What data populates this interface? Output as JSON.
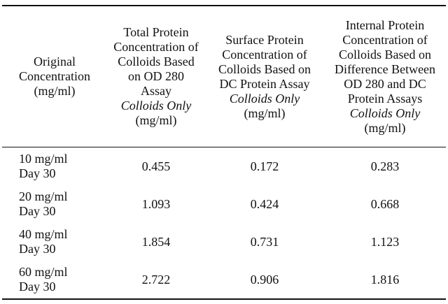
{
  "table": {
    "headers": [
      {
        "lines": [
          "Original",
          "Concentration",
          "(mg/ml)"
        ],
        "italic": "",
        "unit": ""
      },
      {
        "lines": [
          "Total Protein",
          "Concentration of",
          "Colloids Based",
          "on OD 280",
          "Assay"
        ],
        "italic": "Colloids Only",
        "unit": "(mg/ml)"
      },
      {
        "lines": [
          "Surface Protein",
          "Concentration of",
          "Colloids Based on",
          "DC Protein Assay"
        ],
        "italic": "Colloids Only",
        "unit": "(mg/ml)"
      },
      {
        "lines": [
          "Internal Protein",
          "Concentration of",
          "Colloids Based on",
          "Difference Between",
          "OD 280 and DC",
          "Protein Assays"
        ],
        "italic": "Colloids Only",
        "unit": "(mg/ml)"
      }
    ],
    "rows": [
      {
        "conc": "10 mg/ml",
        "day": "Day 30",
        "total": "0.455",
        "surface": "0.172",
        "internal": "0.283"
      },
      {
        "conc": "20 mg/ml",
        "day": "Day 30",
        "total": "1.093",
        "surface": "0.424",
        "internal": "0.668"
      },
      {
        "conc": "40 mg/ml",
        "day": "Day 30",
        "total": "1.854",
        "surface": "0.731",
        "internal": "1.123"
      },
      {
        "conc": "60 mg/ml",
        "day": "Day 30",
        "total": "2.722",
        "surface": "0.906",
        "internal": "1.816"
      }
    ]
  }
}
